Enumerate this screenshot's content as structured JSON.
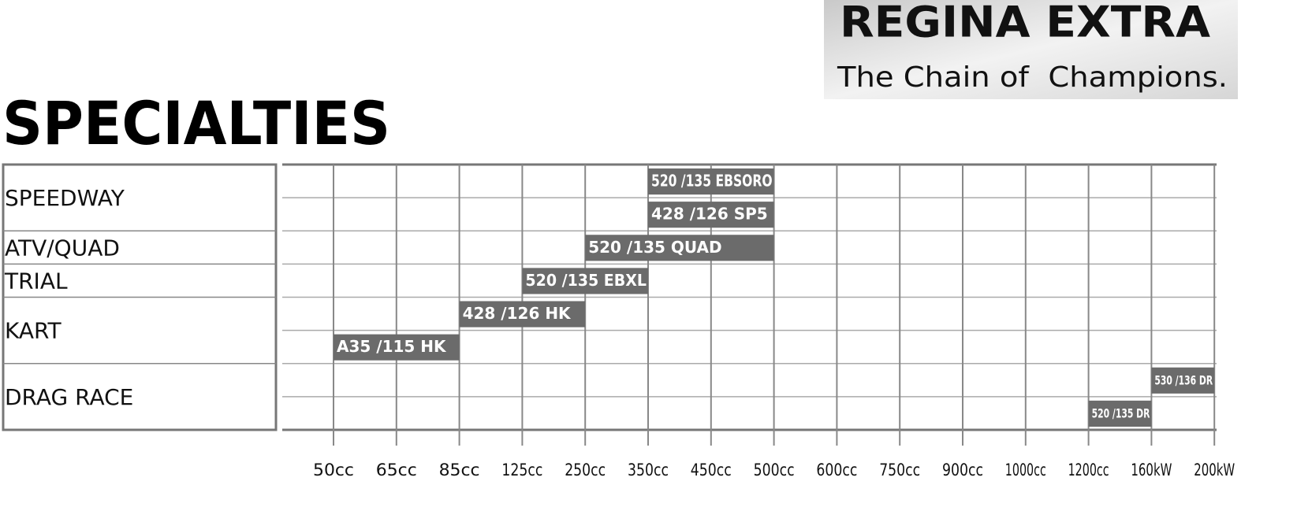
{
  "logo": {
    "name": "REGINA EXTRA",
    "tagline": "The Chain of  Champions."
  },
  "chart_data": {
    "type": "range",
    "title": "SPECIALTIES",
    "categories": [
      "50cc",
      "65cc",
      "85cc",
      "125cc",
      "250cc",
      "350cc",
      "450cc",
      "500cc",
      "600cc",
      "750cc",
      "900cc",
      "1000cc",
      "1200cc",
      "160kW",
      "200kW"
    ],
    "groups": [
      {
        "name": "SPEEDWAY",
        "bars": [
          {
            "label": "520 /135 EBSORO",
            "from": "350cc",
            "to": "500cc"
          },
          {
            "label": "428 /126 SP5",
            "from": "350cc",
            "to": "500cc"
          }
        ]
      },
      {
        "name": "ATV/QUAD",
        "bars": [
          {
            "label": "520 /135 QUAD",
            "from": "250cc",
            "to": "500cc"
          }
        ]
      },
      {
        "name": "TRIAL",
        "bars": [
          {
            "label": "520 /135 EBXL",
            "from": "125cc",
            "to": "350cc"
          }
        ]
      },
      {
        "name": "KART",
        "bars": [
          {
            "label": "428 /126 HK",
            "from": "85cc",
            "to": "250cc"
          },
          {
            "label": "A35 /115 HK",
            "from": "50cc",
            "to": "85cc"
          }
        ]
      },
      {
        "name": "DRAG RACE",
        "bars": [
          {
            "label": "530 /136 DR",
            "from": "160kW",
            "to": "200kW"
          },
          {
            "label": "520 /135 DR",
            "from": "1200cc",
            "to": "160kW"
          }
        ]
      }
    ],
    "color": "#6b6b6b"
  }
}
